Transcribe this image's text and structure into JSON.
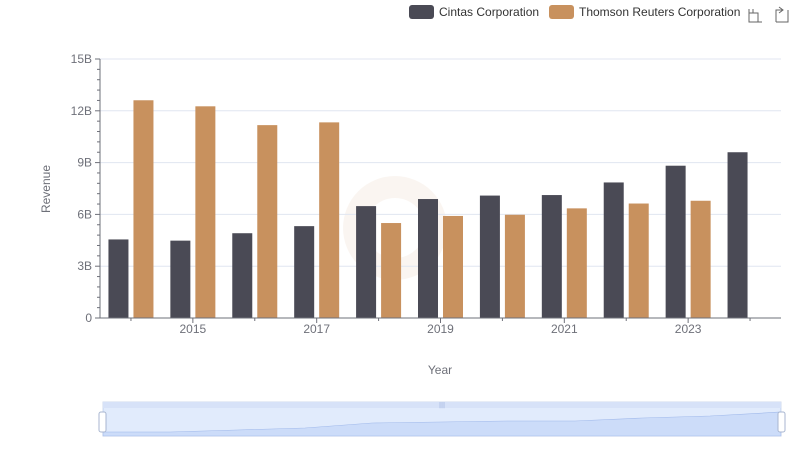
{
  "chart_data": {
    "type": "bar",
    "x": [
      2014,
      2015,
      2016,
      2017,
      2018,
      2019,
      2020,
      2021,
      2022,
      2023,
      2024
    ],
    "series": [
      {
        "name": "Cintas Corporation",
        "color": "#4a4a55",
        "values": [
          4.55,
          4.48,
          4.91,
          5.32,
          6.48,
          6.89,
          7.09,
          7.12,
          7.85,
          8.82,
          9.6
        ]
      },
      {
        "name": "Thomson Reuters Corporation",
        "color": "#c8915e",
        "values": [
          12.61,
          12.26,
          11.17,
          11.33,
          5.5,
          5.91,
          5.98,
          6.35,
          6.63,
          6.79,
          null
        ]
      }
    ],
    "x_tick_labels": [
      "2015",
      "2017",
      "2019",
      "2021",
      "2023"
    ],
    "y_tick_labels": [
      "0",
      "3B",
      "6B",
      "9B",
      "12B",
      "15B"
    ],
    "y_unit": "billions",
    "xlabel": "Year",
    "ylabel": "Revenue",
    "ylim": [
      0,
      15
    ],
    "grid": true,
    "legend_position": "top-right",
    "datazoom_slider": true
  },
  "toolbox": {
    "zoom_icon": "zoom-icon",
    "restore_icon": "restore-icon"
  },
  "colors": {
    "grid": "#e0e6f1",
    "axis": "#6e7079",
    "slider_fill": "#d7e2f8",
    "slider_border": "#d2dbee",
    "slider_handle": "#ffffff"
  }
}
